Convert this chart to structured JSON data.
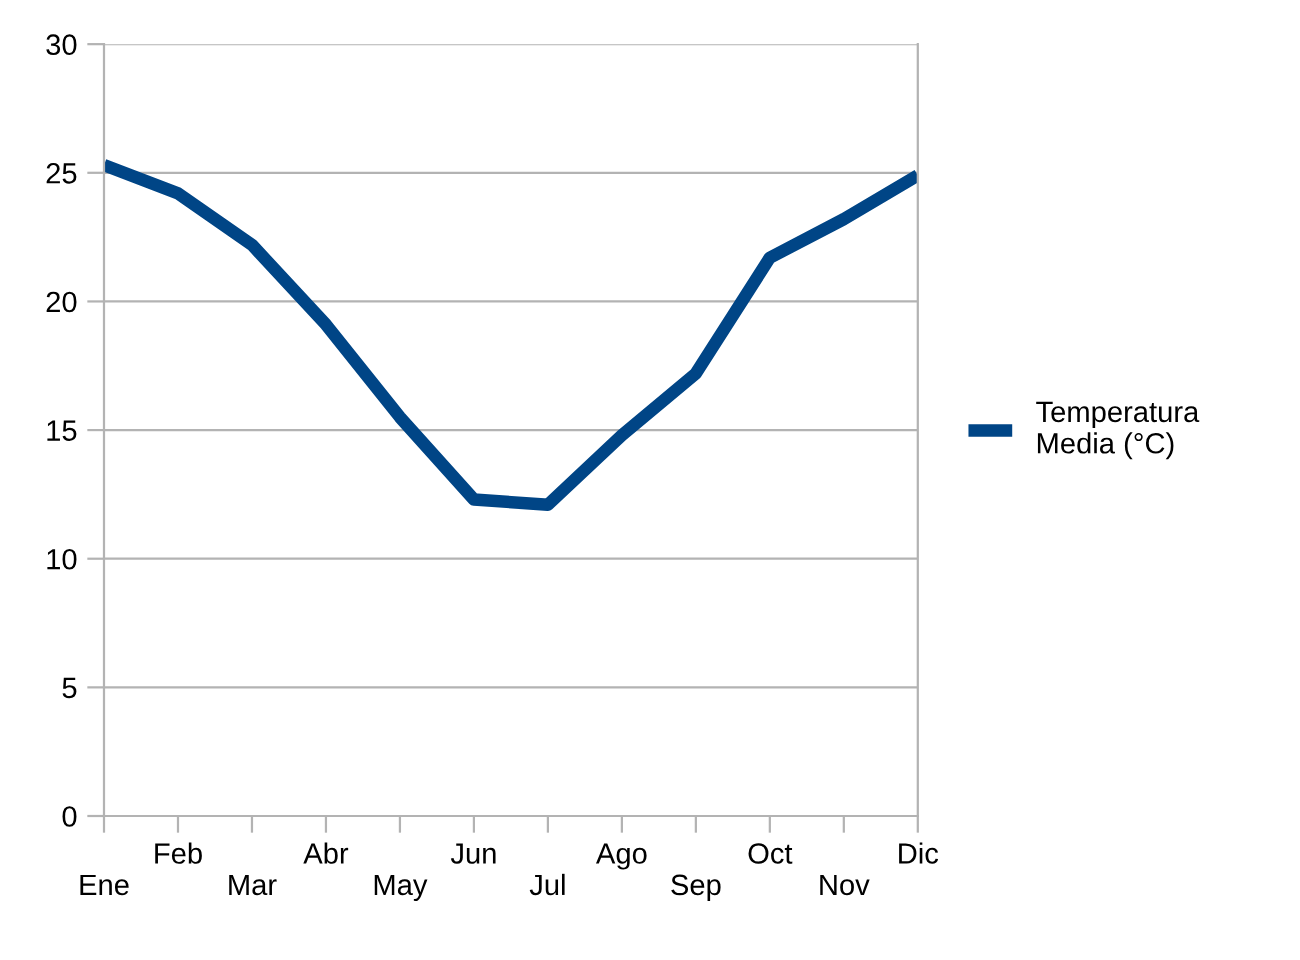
{
  "chart_data": {
    "type": "line",
    "categories": [
      "Ene",
      "Feb",
      "Mar",
      "Abr",
      "May",
      "Jun",
      "Jul",
      "Ago",
      "Sep",
      "Oct",
      "Nov",
      "Dic"
    ],
    "series": [
      {
        "name": "Temperatura\nMedia (°C)",
        "color": "#004586",
        "values": [
          25.3,
          24.2,
          22.2,
          19.1,
          15.5,
          12.3,
          12.1,
          14.8,
          17.2,
          21.7,
          23.2,
          24.9
        ]
      }
    ],
    "ylim": [
      0,
      30
    ],
    "yticks": [
      0,
      5,
      10,
      15,
      20,
      25,
      30
    ],
    "grid": "y",
    "legend": "right",
    "marker": "none",
    "line_style": "solid"
  }
}
